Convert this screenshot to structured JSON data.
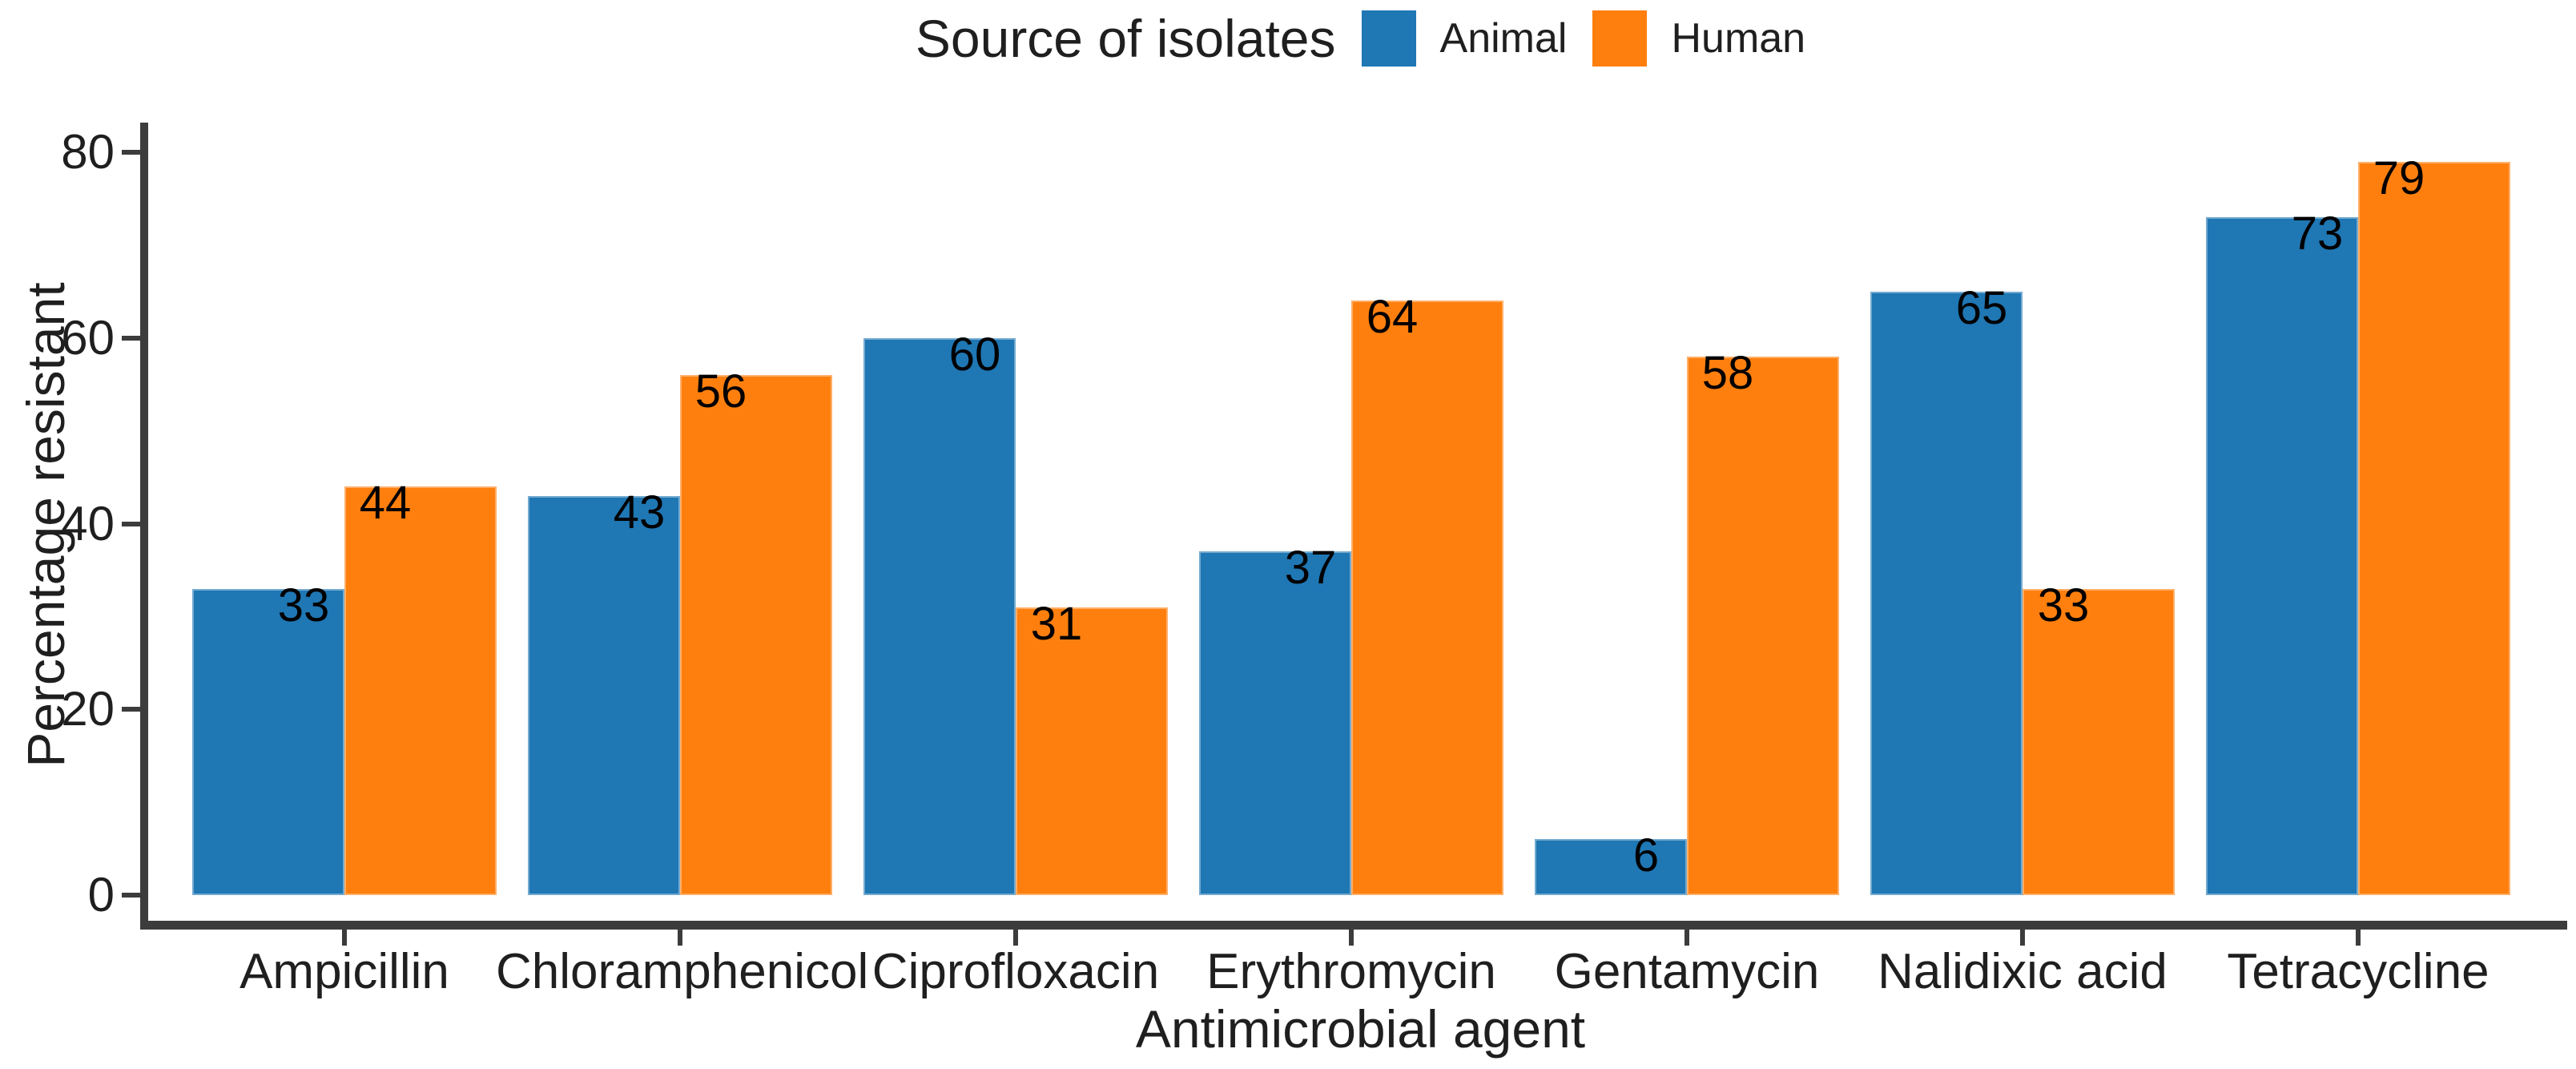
{
  "chart_data": {
    "type": "bar",
    "categories": [
      "Ampicillin",
      "Chloramphenicol",
      "Ciprofloxacin",
      "Erythromycin",
      "Gentamycin",
      "Nalidixic acid",
      "Tetracycline"
    ],
    "series": [
      {
        "name": "Animal",
        "color": "#1F77B4",
        "values": [
          33,
          43,
          60,
          37,
          6,
          65,
          73
        ]
      },
      {
        "name": "Human",
        "color": "#FF7F0E",
        "values": [
          44,
          56,
          31,
          64,
          58,
          33,
          79
        ]
      }
    ],
    "bar_value_labels": [
      "33",
      "44",
      "43",
      "56",
      "60",
      "31",
      "37",
      "64",
      "6",
      "58",
      "65",
      "33",
      "73",
      "79"
    ],
    "xlabel": "Antimicrobial agent",
    "ylabel": "Percentage resistant",
    "yticks": [
      0,
      20,
      40,
      60,
      80
    ],
    "ylim": [
      0,
      83
    ],
    "legend_title": "Source of isolates",
    "legend_position": "top-center",
    "grid": false,
    "axis_color": "#3c3c3c",
    "background": "#ffffff"
  }
}
